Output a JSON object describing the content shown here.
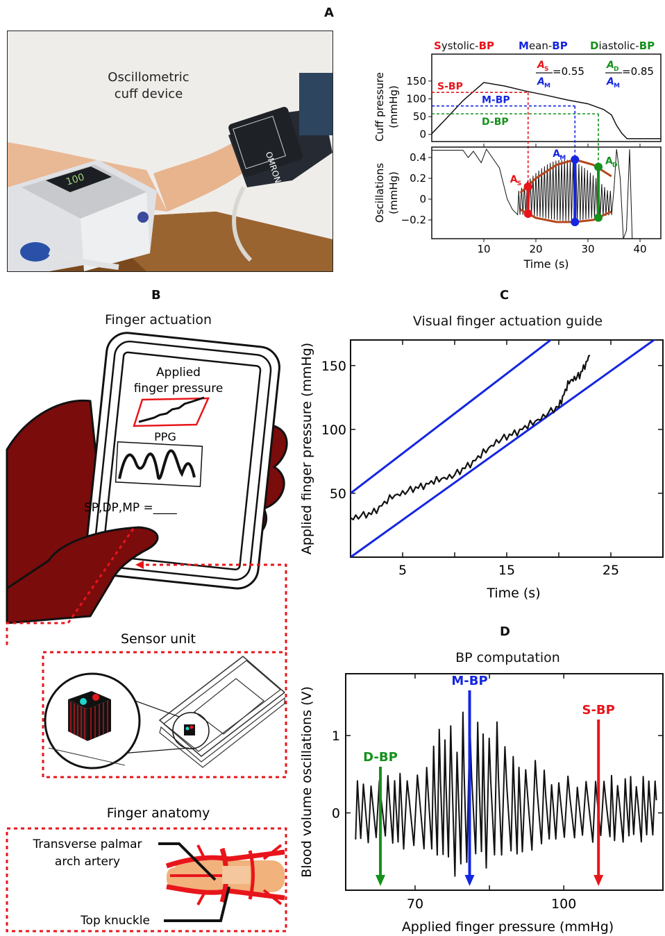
{
  "panels": {
    "A": {
      "letter": "A",
      "photo_caption": [
        "Oscillometric",
        "cuff device"
      ],
      "legend": {
        "systolic": {
          "initial": "S",
          "rest": "ystolic-",
          "suffix": "BP"
        },
        "mean": {
          "initial": "M",
          "rest": "ean-",
          "suffix": "BP"
        },
        "diastolic": {
          "initial": "D",
          "rest": "iastolic-",
          "suffix": "BP"
        }
      },
      "ratios": {
        "s_num": "A",
        "s_num_sub": "S",
        "s_den": "A",
        "s_den_sub": "M",
        "s_value": "=0.55",
        "d_num": "A",
        "d_num_sub": "D",
        "d_den": "A",
        "d_den_sub": "M",
        "d_value": "=0.85"
      },
      "markers": {
        "sbp": "S-BP",
        "mbp": "M-BP",
        "dbp": "D-BP",
        "as": "A",
        "as_sub": "S",
        "am": "A",
        "am_sub": "M",
        "ad": "A",
        "ad_sub": "D"
      },
      "top_ylabel": [
        "Cuff pressure",
        "(mmHg)"
      ],
      "bottom_ylabel": [
        "Oscillations",
        "(mmHg)"
      ],
      "xlabel": "Time (s)",
      "top_yticks": [
        "150",
        "100",
        "50",
        "0"
      ],
      "bottom_yticks": [
        "0.4",
        "0.2",
        "0",
        "−0.2"
      ],
      "xticks": [
        "10",
        "20",
        "30",
        "40"
      ]
    },
    "B": {
      "letter": "B",
      "title": "Finger actuation",
      "phone": {
        "applied": [
          "Applied",
          "finger pressure"
        ],
        "ppg": "PPG",
        "readout": "SP,DP,MP =____"
      },
      "sensor_title": "Sensor unit",
      "anatomy_title": "Finger anatomy",
      "labels": {
        "artery": [
          "Transverse palmar",
          "arch artery"
        ],
        "knuckle": "Top knuckle"
      }
    },
    "C": {
      "letter": "C",
      "title": "Visual finger actuation guide",
      "xlabel": "Time (s)",
      "ylabel": "Applied finger pressure (mmHg)",
      "xticks": [
        "5",
        "15",
        "25"
      ],
      "yticks": [
        "150",
        "100",
        "50"
      ]
    },
    "D": {
      "letter": "D",
      "title": "BP computation",
      "xlabel": "Applied finger pressure (mmHg)",
      "ylabel": "Blood volume oscillations (V)",
      "xticks": [
        "70",
        "100"
      ],
      "yticks": [
        "1",
        "0"
      ],
      "markers": {
        "dbp": "D-BP",
        "mbp": "M-BP",
        "sbp": "S-BP"
      }
    }
  },
  "colors": {
    "systolic": "#e8151b",
    "mean": "#1426e0",
    "diastolic": "#15911c",
    "hand": "#7a0c0c",
    "envelope": "#b5471d"
  },
  "chart_data": [
    {
      "type": "line",
      "panel": "A-top",
      "ylabel": "Cuff pressure (mmHg)",
      "xlabel": "Time (s)",
      "xlim": [
        0,
        44
      ],
      "ylim": [
        -20,
        175
      ],
      "series": [
        {
          "x": [
            0,
            3,
            6,
            10,
            14,
            18,
            22,
            26,
            30,
            33,
            34.5,
            35.5,
            36.5,
            37.5,
            44
          ],
          "y": [
            2,
            48,
            95,
            146,
            136,
            122,
            110,
            97,
            86,
            70,
            55,
            25,
            3,
            -12,
            -12
          ]
        }
      ],
      "markers": {
        "sbp": 118,
        "mbp": 80,
        "dbp": 58,
        "sbp_time": 18.5,
        "mbp_time": 27.5,
        "dbp_time": 32
      }
    },
    {
      "type": "line",
      "panel": "A-bottom",
      "ylabel": "Oscillations (mmHg)",
      "xlabel": "Time (s)",
      "xlim": [
        0,
        44
      ],
      "ylim": [
        -0.38,
        0.5
      ],
      "envelope_upper": {
        "x": [
          17,
          20,
          24,
          27.5,
          31,
          34.5
        ],
        "y": [
          0.06,
          0.2,
          0.33,
          0.38,
          0.33,
          0.22
        ]
      },
      "envelope_lower": {
        "x": [
          17,
          20,
          24,
          27.5,
          31,
          34.5
        ],
        "y": [
          -0.1,
          -0.18,
          -0.22,
          -0.22,
          -0.2,
          -0.12
        ]
      },
      "points": {
        "as": [
          18.5,
          0.12
        ],
        "am": [
          27.5,
          0.38
        ],
        "ad": [
          32,
          0.31
        ]
      },
      "ratios": {
        "as_over_am": 0.55,
        "ad_over_am": 0.85
      }
    },
    {
      "type": "line",
      "panel": "C",
      "xlabel": "Time (s)",
      "ylabel": "Applied finger pressure (mmHg)",
      "xlim": [
        0,
        30
      ],
      "ylim": [
        0,
        170
      ],
      "guide_upper": {
        "x": [
          0,
          20.5
        ],
        "y": [
          50,
          178
        ]
      },
      "guide_lower": {
        "x": [
          0,
          30
        ],
        "y": [
          0,
          175
        ]
      },
      "series": [
        {
          "x": [
            0,
            2,
            4,
            6,
            8,
            10,
            12,
            14,
            16,
            18,
            20,
            21,
            22,
            23
          ],
          "y": [
            30,
            34,
            47,
            53,
            59,
            64,
            76,
            90,
            98,
            107,
            118,
            137,
            142,
            158
          ]
        }
      ]
    },
    {
      "type": "line",
      "panel": "D",
      "xlabel": "Applied finger pressure (mmHg)",
      "ylabel": "Blood volume oscillations (V)",
      "xlim": [
        56,
        120
      ],
      "ylim": [
        -1,
        1.8
      ],
      "markers": {
        "dbp": 63,
        "mbp": 81,
        "sbp": 107
      }
    }
  ]
}
